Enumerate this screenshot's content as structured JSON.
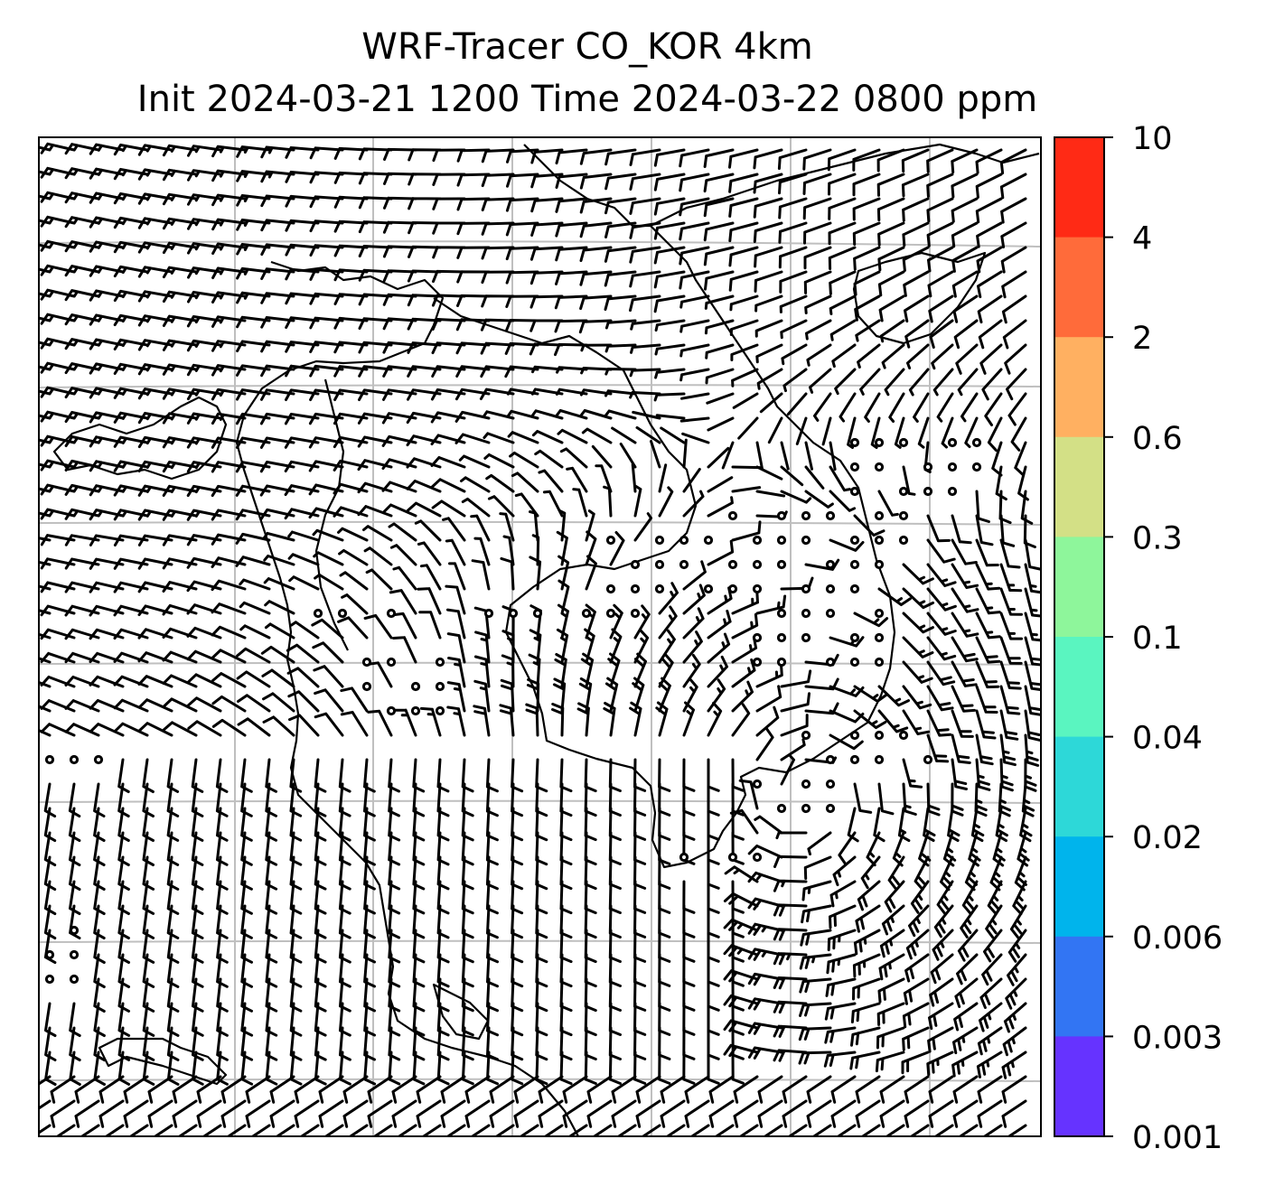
{
  "title": {
    "line1": "WRF-Tracer CO_KOR 4km",
    "line2": "Init 2024-03-21 1200 Time 2024-03-22 0800 ppm"
  },
  "colorbar": {
    "ticks": [
      "10",
      "4",
      "2",
      "0.6",
      "0.3",
      "0.1",
      "0.04",
      "0.02",
      "0.006",
      "0.003",
      "0.001"
    ],
    "colors": [
      "#ff2a15",
      "#ff6b3a",
      "#ffb061",
      "#d3e086",
      "#8ef69b",
      "#5af5c0",
      "#2dd8d8",
      "#00b4ec",
      "#3275f3",
      "#6633ff"
    ]
  },
  "map": {
    "features": [
      "coastline",
      "lat-lon gridlines",
      "wind barbs",
      "calm wind circles"
    ],
    "gridline_color": "#bfbfbf"
  }
}
